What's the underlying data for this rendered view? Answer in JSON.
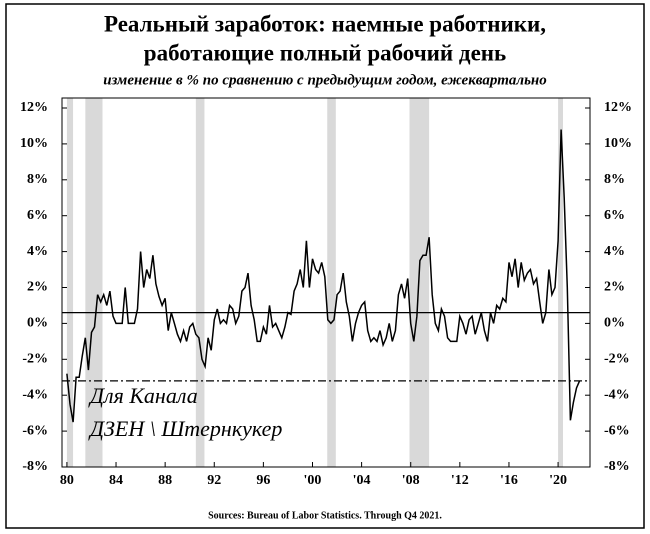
{
  "chart_data": {
    "type": "line",
    "title": [
      "Реальный заработок: наемные работники,",
      "работающие полный рабочий день"
    ],
    "subtitle": "изменение в % по сравнению с предыдущим годом, ежеквартально",
    "source": "Sources: Bureau of Labor Statistics. Through Q4 2021.",
    "watermark": [
      "Для Канала",
      "ДЗЕН \\ Штернкукер"
    ],
    "xlim": [
      1979.6,
      2022.6
    ],
    "ylim": [
      -8,
      12
    ],
    "xticks": [
      {
        "value": 1980,
        "label": "80"
      },
      {
        "value": 1984,
        "label": "84"
      },
      {
        "value": 1988,
        "label": "88"
      },
      {
        "value": 1992,
        "label": "92"
      },
      {
        "value": 1996,
        "label": "96"
      },
      {
        "value": 2000,
        "label": "'00"
      },
      {
        "value": 2004,
        "label": "'04"
      },
      {
        "value": 2008,
        "label": "'08"
      },
      {
        "value": 2012,
        "label": "'12"
      },
      {
        "value": 2016,
        "label": "'16"
      },
      {
        "value": 2020,
        "label": "'20"
      }
    ],
    "yticks": [
      {
        "value": -8,
        "label": "-8%"
      },
      {
        "value": -6,
        "label": "-6%"
      },
      {
        "value": -4,
        "label": "-4%"
      },
      {
        "value": -2,
        "label": "-2%"
      },
      {
        "value": 0,
        "label": "0%"
      },
      {
        "value": 2,
        "label": "2%"
      },
      {
        "value": 4,
        "label": "4%"
      },
      {
        "value": 6,
        "label": "6%"
      },
      {
        "value": 8,
        "label": "8%"
      },
      {
        "value": 10,
        "label": "10%"
      },
      {
        "value": 12,
        "label": "12%"
      }
    ],
    "recessions": [
      [
        1980.0,
        1980.5
      ],
      [
        1981.5,
        1982.9
      ],
      [
        1990.5,
        1991.2
      ],
      [
        2001.2,
        2001.9
      ],
      [
        2007.9,
        2009.5
      ],
      [
        2020.0,
        2020.4
      ]
    ],
    "recession_color": "#d9d9d9",
    "reference_lines": [
      {
        "value": 0.6,
        "style": "solid"
      },
      {
        "value": -3.2,
        "style": "dashdot"
      }
    ],
    "color": "#000000",
    "x": [
      1980,
      1980.25,
      1980.5,
      1980.75,
      1981,
      1981.25,
      1981.5,
      1981.75,
      1982,
      1982.25,
      1982.5,
      1982.75,
      1983,
      1983.25,
      1983.5,
      1983.75,
      1984,
      1984.25,
      1984.5,
      1984.75,
      1985,
      1985.25,
      1985.5,
      1985.75,
      1986,
      1986.25,
      1986.5,
      1986.75,
      1987,
      1987.25,
      1987.5,
      1987.75,
      1988,
      1988.25,
      1988.5,
      1988.75,
      1989,
      1989.25,
      1989.5,
      1989.75,
      1990,
      1990.25,
      1990.5,
      1990.75,
      1991,
      1991.25,
      1991.5,
      1991.75,
      1992,
      1992.25,
      1992.5,
      1992.75,
      1993,
      1993.25,
      1993.5,
      1993.75,
      1994,
      1994.25,
      1994.5,
      1994.75,
      1995,
      1995.25,
      1995.5,
      1995.75,
      1996,
      1996.25,
      1996.5,
      1996.75,
      1997,
      1997.25,
      1997.5,
      1997.75,
      1998,
      1998.25,
      1998.5,
      1998.75,
      1999,
      1999.25,
      1999.5,
      1999.75,
      2000,
      2000.25,
      2000.5,
      2000.75,
      2001,
      2001.25,
      2001.5,
      2001.75,
      2002,
      2002.25,
      2002.5,
      2002.75,
      2003,
      2003.25,
      2003.5,
      2003.75,
      2004,
      2004.25,
      2004.5,
      2004.75,
      2005,
      2005.25,
      2005.5,
      2005.75,
      2006,
      2006.25,
      2006.5,
      2006.75,
      2007,
      2007.25,
      2007.5,
      2007.75,
      2008,
      2008.25,
      2008.5,
      2008.75,
      2009,
      2009.25,
      2009.5,
      2009.75,
      2010,
      2010.25,
      2010.5,
      2010.75,
      2011,
      2011.25,
      2011.5,
      2011.75,
      2012,
      2012.25,
      2012.5,
      2012.75,
      2013,
      2013.25,
      2013.5,
      2013.75,
      2014,
      2014.25,
      2014.5,
      2014.75,
      2015,
      2015.25,
      2015.5,
      2015.75,
      2016,
      2016.25,
      2016.5,
      2016.75,
      2017,
      2017.25,
      2017.5,
      2017.75,
      2018,
      2018.25,
      2018.5,
      2018.75,
      2019,
      2019.25,
      2019.5,
      2019.75,
      2020,
      2020.25,
      2020.5,
      2020.75,
      2021,
      2021.25,
      2021.5,
      2021.75
    ],
    "values": [
      -2.8,
      -4.5,
      -5.5,
      -3.0,
      -3.0,
      -1.8,
      -0.8,
      -2.6,
      -0.5,
      -0.2,
      1.6,
      1.2,
      1.6,
      1.0,
      1.8,
      0.4,
      0.0,
      0.0,
      0.0,
      2.0,
      0.0,
      0.0,
      0.0,
      0.8,
      4.0,
      2.0,
      3.0,
      2.5,
      3.8,
      2.2,
      1.5,
      1.0,
      1.4,
      -0.4,
      0.6,
      0.0,
      -0.6,
      -1.0,
      -0.4,
      -1.0,
      -0.2,
      0.0,
      -0.6,
      -0.8,
      -2.0,
      -2.4,
      -0.8,
      -1.5,
      0.2,
      0.8,
      0.0,
      0.2,
      0.0,
      1.0,
      0.8,
      0.0,
      0.4,
      1.8,
      2.0,
      2.8,
      1.0,
      0.2,
      -1.0,
      -1.0,
      -0.2,
      -0.6,
      1.0,
      -0.2,
      0.0,
      -0.4,
      -0.8,
      -0.2,
      0.6,
      0.5,
      1.8,
      2.2,
      3.0,
      2.0,
      4.6,
      2.0,
      3.6,
      3.0,
      2.8,
      3.4,
      2.6,
      0.2,
      0.0,
      0.2,
      1.6,
      1.8,
      2.8,
      1.2,
      0.4,
      -1.0,
      0.0,
      0.6,
      1.0,
      1.2,
      -0.4,
      -1.0,
      -0.8,
      -1.0,
      -0.4,
      -1.2,
      -0.8,
      0.0,
      -1.0,
      -0.4,
      1.6,
      2.2,
      1.4,
      2.5,
      0.0,
      -1.0,
      0.4,
      3.5,
      3.8,
      3.8,
      4.8,
      1.6,
      0.0,
      -0.4,
      0.8,
      0.4,
      -0.8,
      -1.0,
      -1.0,
      -1.0,
      0.4,
      0.0,
      -0.6,
      0.2,
      0.4,
      -0.6,
      0.0,
      0.6,
      -0.4,
      -1.0,
      0.6,
      0.0,
      1.0,
      0.8,
      1.4,
      1.2,
      3.4,
      2.6,
      3.6,
      2.0,
      3.4,
      2.4,
      2.8,
      3.0,
      2.2,
      2.5,
      1.2,
      0.0,
      0.6,
      3.0,
      1.6,
      2.0,
      4.6,
      10.8,
      7.0,
      2.0,
      -5.4,
      -4.4,
      -3.6,
      -3.2
    ]
  }
}
